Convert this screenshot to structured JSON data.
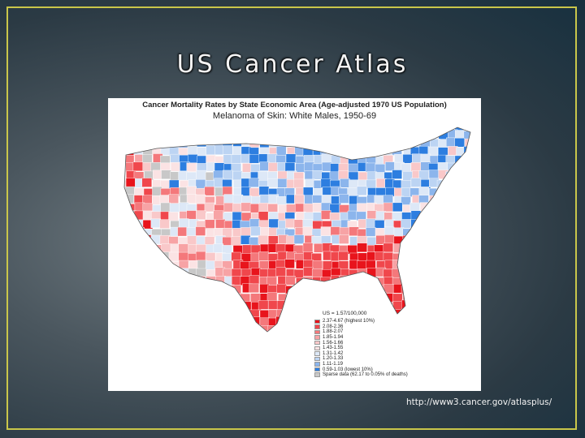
{
  "slide": {
    "title": "US Cancer Atlas",
    "source_url": "http://www3.cancer.gov/atlasplus/"
  },
  "map": {
    "title": "Cancer Mortality Rates by State Economic Area (Age-adjusted 1970 US Population)",
    "subtitle": "Melanoma of Skin:  White Males, 1950-69",
    "legend": {
      "heading": "US = 1.57/100,000",
      "items": [
        {
          "label": "2.37-4.67 (highest 10%)",
          "color": "#e8141c"
        },
        {
          "label": "2.08-2.36",
          "color": "#f0474c"
        },
        {
          "label": "1.88-2.07",
          "color": "#f4787b"
        },
        {
          "label": "1.85-1.94",
          "color": "#f7a3a5"
        },
        {
          "label": "1.56-1.66",
          "color": "#f9c8c9"
        },
        {
          "label": "1.43-1.55",
          "color": "#fbe3e4"
        },
        {
          "label": "1.31-1.42",
          "color": "#dde8f7"
        },
        {
          "label": "1.20-1.33",
          "color": "#bcd4f3"
        },
        {
          "label": "1.11-1.19",
          "color": "#8cb5ec"
        },
        {
          "label": "0.59-1.03 (lowest 10%)",
          "color": "#2d7ee0"
        },
        {
          "label": "Sparse data (62.17 to 0.05% of deaths)",
          "color": "#c8c8c8"
        }
      ]
    },
    "palette": [
      "#e8141c",
      "#f0474c",
      "#f4787b",
      "#f7a3a5",
      "#f9c8c9",
      "#fbe3e4",
      "#dde8f7",
      "#bcd4f3",
      "#8cb5ec",
      "#2d7ee0",
      "#c8c8c8"
    ]
  }
}
